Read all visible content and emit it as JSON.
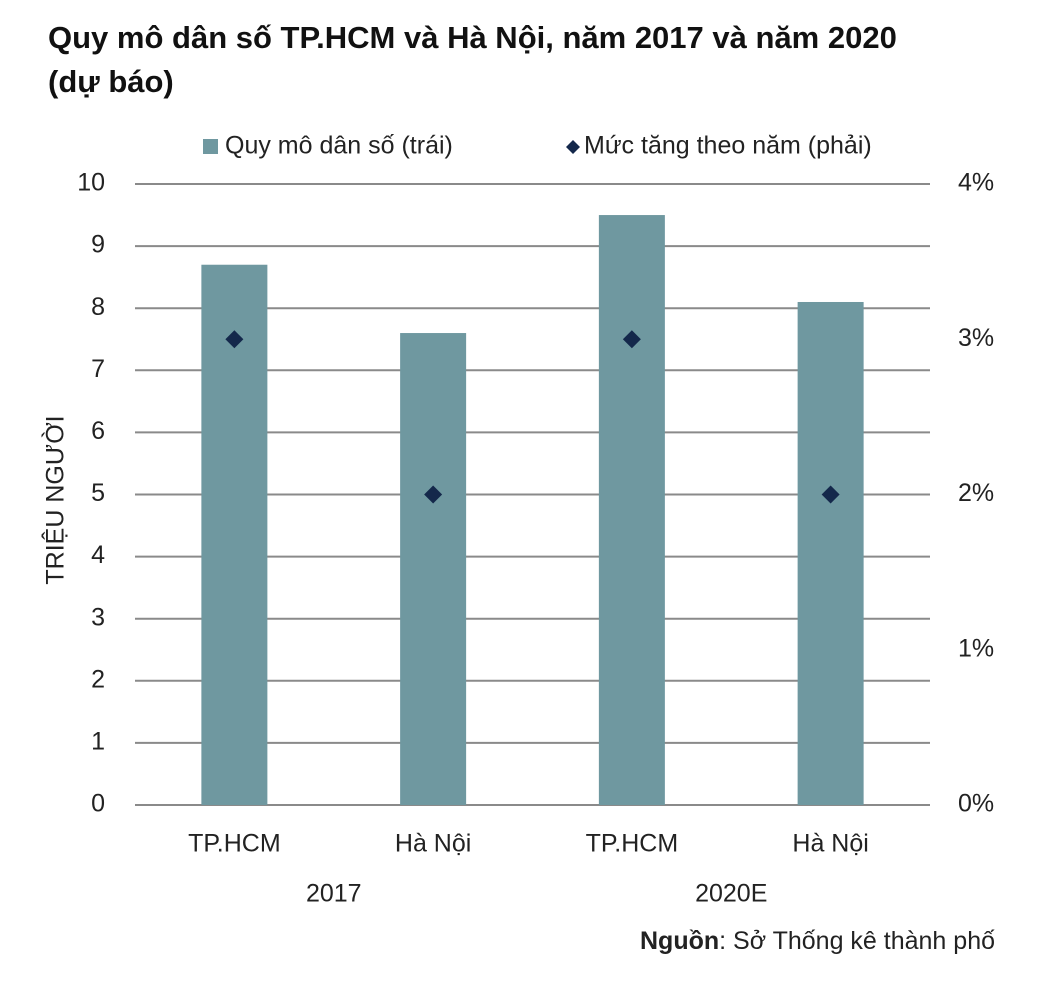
{
  "chart_data": {
    "type": "bar_line",
    "title": "Quy mô dân số TP.HCM và Hà Nội, năm 2017 và năm 2020 (dự báo)",
    "y_label": "TRIỆU NGƯỜI",
    "categories": [
      "TP.HCM",
      "Hà Nội",
      "TP.HCM",
      "Hà Nội"
    ],
    "x_groups": [
      "2017",
      "2020E"
    ],
    "series": [
      {
        "name": "Quy mô dân số (trái)",
        "color": "#6f98a0",
        "values": [
          8.7,
          7.6,
          9.5,
          8.1
        ]
      },
      {
        "name": "Mức tăng theo năm (phải)",
        "color": "#14284b",
        "values": [
          3,
          2,
          3,
          2
        ],
        "axis": "y2"
      }
    ],
    "ylim": [
      0,
      10
    ],
    "yticks": [
      0,
      1,
      2,
      3,
      4,
      5,
      6,
      7,
      8,
      9,
      10
    ],
    "y2lim": [
      0,
      4
    ],
    "y2ticks": [
      {
        "value": 0,
        "label": "0%"
      },
      {
        "value": 1,
        "label": "1%"
      },
      {
        "value": 2,
        "label": "2%"
      },
      {
        "value": 3,
        "label": "3%"
      },
      {
        "value": 4,
        "label": "4%"
      }
    ],
    "grid": true,
    "source_label": "Nguồn",
    "source": ": Sở Thống kê thành phố"
  }
}
